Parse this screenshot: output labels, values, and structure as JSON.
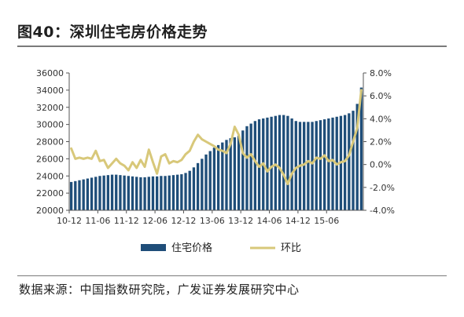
{
  "title": "图40：深圳住宅房价格走势",
  "source": "数据来源：中国指数研究院，广发证券发展研究中心",
  "chart_data": {
    "type": "bar+line",
    "x_tick_labels": [
      "10-12",
      "11-06",
      "11-12",
      "12-06",
      "12-12",
      "13-06",
      "13-12",
      "14-06",
      "14-12",
      "15-06"
    ],
    "y_left": {
      "min": 20000,
      "max": 36000,
      "step": 2000,
      "ticks": [
        "20000",
        "22000",
        "24000",
        "26000",
        "28000",
        "30000",
        "32000",
        "34000",
        "36000"
      ]
    },
    "y_right": {
      "min": -4.0,
      "max": 8.0,
      "step": 2.0,
      "ticks": [
        "-4.0%",
        "-2.0%",
        "0.0%",
        "2.0%",
        "4.0%",
        "6.0%",
        "8.0%"
      ]
    },
    "series": [
      {
        "name": "住宅价格",
        "type": "bar",
        "axis": "left",
        "color": "#1f4e79",
        "values": [
          23300,
          23400,
          23500,
          23600,
          23700,
          23800,
          23900,
          24000,
          24050,
          24100,
          24150,
          24150,
          24100,
          24050,
          24000,
          23950,
          23900,
          23850,
          23850,
          23900,
          23950,
          23950,
          24000,
          24000,
          24050,
          24100,
          24150,
          24200,
          24350,
          24600,
          25000,
          25500,
          26000,
          26500,
          26900,
          27300,
          27600,
          27900,
          28200,
          28400,
          28500,
          28700,
          29300,
          29800,
          30100,
          30400,
          30600,
          30700,
          30800,
          30900,
          31000,
          31100,
          31100,
          31000,
          30700,
          30400,
          30300,
          30300,
          30300,
          30300,
          30400,
          30500,
          30600,
          30700,
          30800,
          30900,
          31000,
          31100,
          31300,
          31600,
          32400,
          34300
        ]
      },
      {
        "name": "环比",
        "type": "line",
        "axis": "right",
        "color": "#d8c87a",
        "values": [
          1.4,
          0.5,
          0.6,
          0.5,
          0.6,
          0.5,
          1.2,
          0.3,
          0.4,
          -0.3,
          0.1,
          0.5,
          0.1,
          -0.1,
          -0.5,
          0.2,
          -0.3,
          0.4,
          -0.2,
          1.3,
          0.2,
          -0.8,
          0.7,
          0.9,
          0.1,
          0.3,
          0.2,
          0.4,
          0.9,
          1.2,
          2.0,
          2.6,
          2.2,
          2.0,
          1.8,
          1.6,
          1.3,
          1.2,
          1.0,
          1.8,
          3.3,
          2.6,
          1.0,
          0.6,
          0.9,
          0.3,
          -0.2,
          0.1,
          -0.6,
          -0.2,
          0.0,
          -0.3,
          -0.9,
          -1.7,
          -0.8,
          -0.3,
          -0.1,
          0.0,
          0.3,
          0.1,
          0.6,
          0.5,
          0.8,
          0.3,
          0.4,
          0.0,
          0.2,
          0.3,
          0.8,
          2.0,
          3.2,
          6.5
        ]
      }
    ],
    "legend_position": "bottom",
    "grid": false
  }
}
